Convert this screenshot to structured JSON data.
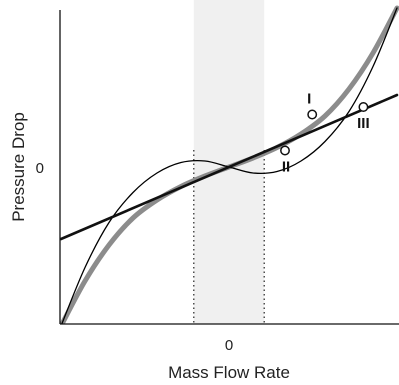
{
  "chart_data": {
    "type": "line",
    "xlabel": "Mass Flow Rate",
    "ylabel": "Pressure Drop",
    "x_ticks": [
      "0"
    ],
    "y_ticks": [
      "0"
    ],
    "xlim": [
      -1,
      1
    ],
    "ylim": [
      -1,
      1
    ],
    "grid": false,
    "shaded_region": {
      "x_start": -0.22,
      "x_end": 0.22,
      "color": "#f0f0f0",
      "boundary_style": "dotted"
    },
    "series": [
      {
        "style": "thick-gray",
        "color": "#8c8c8c",
        "x": [
          -1.05,
          -0.9,
          -0.75,
          -0.6,
          -0.45,
          -0.3,
          -0.15,
          0,
          0.15,
          0.3,
          0.45,
          0.6,
          0.75,
          0.9,
          1.05
        ],
        "y": [
          -1.06,
          -0.76,
          -0.52,
          -0.34,
          -0.22,
          -0.13,
          -0.06,
          0.0,
          0.06,
          0.13,
          0.22,
          0.34,
          0.52,
          0.76,
          1.06
        ]
      },
      {
        "style": "thin-black",
        "color": "#000000",
        "x": [
          -1.05,
          -0.9,
          -0.75,
          -0.6,
          -0.45,
          -0.3,
          -0.15,
          0,
          0.15,
          0.3,
          0.45,
          0.6,
          0.75,
          0.9,
          1.05
        ],
        "y": [
          -1.06,
          -0.67,
          -0.37,
          -0.17,
          -0.04,
          0.03,
          0.04,
          0.0,
          -0.04,
          -0.03,
          0.04,
          0.17,
          0.37,
          0.67,
          1.06
        ]
      },
      {
        "style": "thick-black",
        "color": "#111111",
        "x": [
          -1.05,
          1.05
        ],
        "y": [
          -0.48,
          0.48
        ]
      }
    ],
    "annotations": [
      {
        "label": "I",
        "x": 0.52,
        "y": 0.35
      },
      {
        "label": "II",
        "x": 0.35,
        "y": 0.11
      },
      {
        "label": "III",
        "x": 0.84,
        "y": 0.4
      }
    ]
  }
}
